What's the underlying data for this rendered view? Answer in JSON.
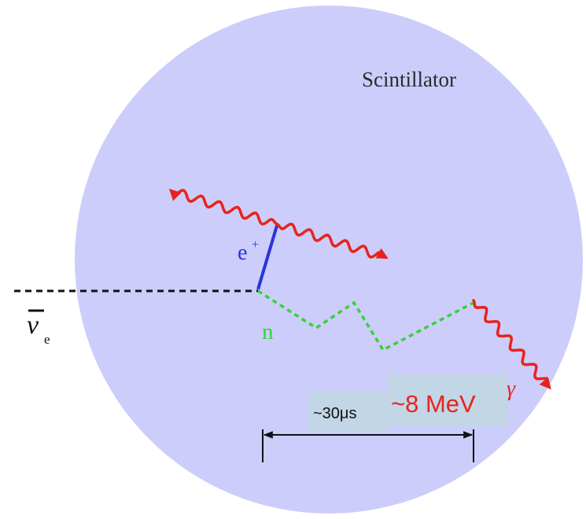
{
  "labels": {
    "medium": "Scintillator",
    "positron": "e",
    "positron_charge": "+",
    "neutron": "n",
    "antineutrino": "ν",
    "antineutrino_flavor": "e",
    "capture_delay": "~30μs",
    "capture_energy": "~8 MeV",
    "gamma_symbol_partial": "γ"
  },
  "colors": {
    "scintillator": "#cccdfa",
    "photon": "#e8231f",
    "positron_track": "#2a35d8",
    "neutron_track": "#37d23a",
    "neutrino_track": "#111111",
    "energy_text": "#e8231f",
    "label_box": "#c2d6e6"
  },
  "icons": {
    "photon": "wavy-arrow-icon",
    "interval": "double-arrow-icon"
  }
}
